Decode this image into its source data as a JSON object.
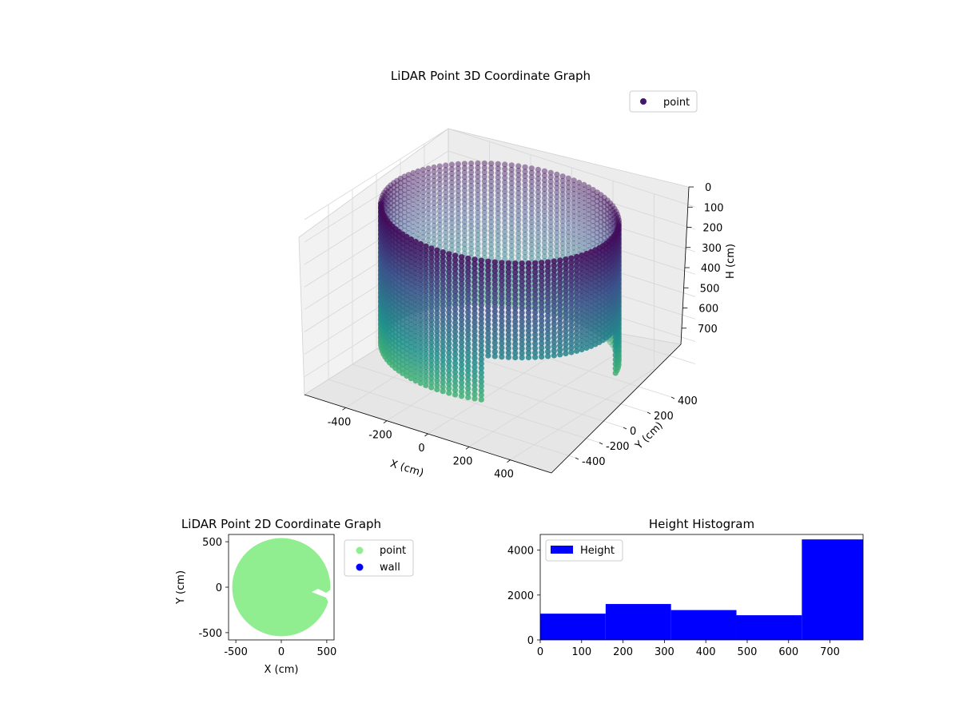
{
  "chart_data": [
    {
      "type": "scatter",
      "projection": "3d",
      "title": "LiDAR Point 3D Coordinate Graph",
      "xlabel": "X (cm)",
      "ylabel": "Y (cm)",
      "zlabel": "H (cm)",
      "xticks": [
        -400,
        -200,
        0,
        200,
        400
      ],
      "yticks": [
        -400,
        -200,
        0,
        200,
        400
      ],
      "zticks": [
        0,
        100,
        200,
        300,
        400,
        500,
        600,
        700
      ],
      "xlim": [
        -600,
        600
      ],
      "ylim": [
        -600,
        600
      ],
      "zlim": [
        0,
        780
      ],
      "z_inverted": true,
      "legend": {
        "position": "top-right",
        "entries": [
          {
            "label": "point",
            "color": "#46166b"
          }
        ]
      },
      "grid": true,
      "cylinder_radius": 500,
      "cylinder_height": 780,
      "colormap": [
        "#440154",
        "#3b528b",
        "#21918c",
        "#5ec962"
      ]
    },
    {
      "type": "scatter",
      "title": "LiDAR Point 2D Coordinate Graph",
      "xlabel": "X (cm)",
      "ylabel": "Y (cm)",
      "xticks": [
        -500,
        0,
        500
      ],
      "yticks": [
        -500,
        0,
        500
      ],
      "xlim": [
        -580,
        580
      ],
      "ylim": [
        -580,
        580
      ],
      "legend": {
        "position": "outside-right",
        "entries": [
          {
            "label": "point",
            "color": "#90ee90"
          },
          {
            "label": "wall",
            "color": "#0000ff"
          }
        ]
      },
      "disk_radius": 540
    },
    {
      "type": "bar",
      "title": "Height Histogram",
      "bin_edges": [
        0,
        158,
        316,
        474,
        632,
        780
      ],
      "values": [
        1170,
        1600,
        1330,
        1100,
        4480
      ],
      "xticks": [
        0,
        100,
        200,
        300,
        400,
        500,
        600,
        700
      ],
      "yticks": [
        0,
        2000,
        4000
      ],
      "xlim": [
        0,
        780
      ],
      "ylim": [
        0,
        4700
      ],
      "bar_color": "#0000ff",
      "legend": {
        "position": "top-left",
        "entries": [
          {
            "label": "Height",
            "color": "#0000ff"
          }
        ]
      }
    }
  ]
}
